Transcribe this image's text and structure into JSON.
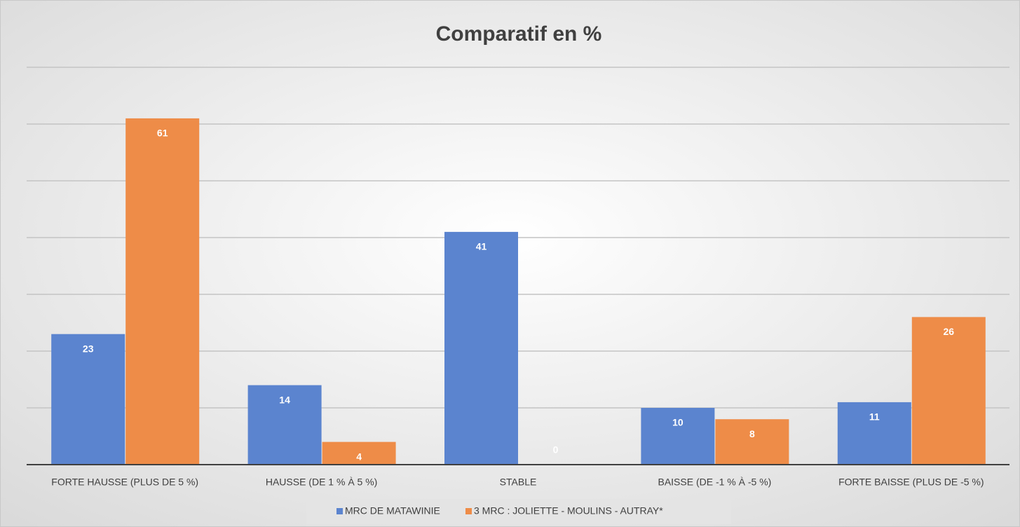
{
  "chart_data": {
    "type": "bar",
    "title": "Comparatif en %",
    "categories": [
      "FORTE HAUSSE (PLUS DE 5 %)",
      "HAUSSE (DE 1 % À 5 %)",
      "STABLE",
      "BAISSE (DE -1 % À -5 %)",
      "FORTE BAISSE (PLUS DE -5 %)"
    ],
    "series": [
      {
        "name": "MRC DE MATAWINIE",
        "color": "#5b84cf",
        "values": [
          23,
          14,
          41,
          10,
          11
        ]
      },
      {
        "name": "3 MRC  : JOLIETTE - MOULINS - AUTRAY*",
        "color": "#ee8c48",
        "values": [
          61,
          4,
          0,
          8,
          26
        ]
      }
    ],
    "ylim": [
      0,
      70
    ],
    "yticks": [
      0,
      10,
      20,
      30,
      40,
      50,
      60,
      70
    ],
    "grid": true,
    "legend": "bottom"
  }
}
